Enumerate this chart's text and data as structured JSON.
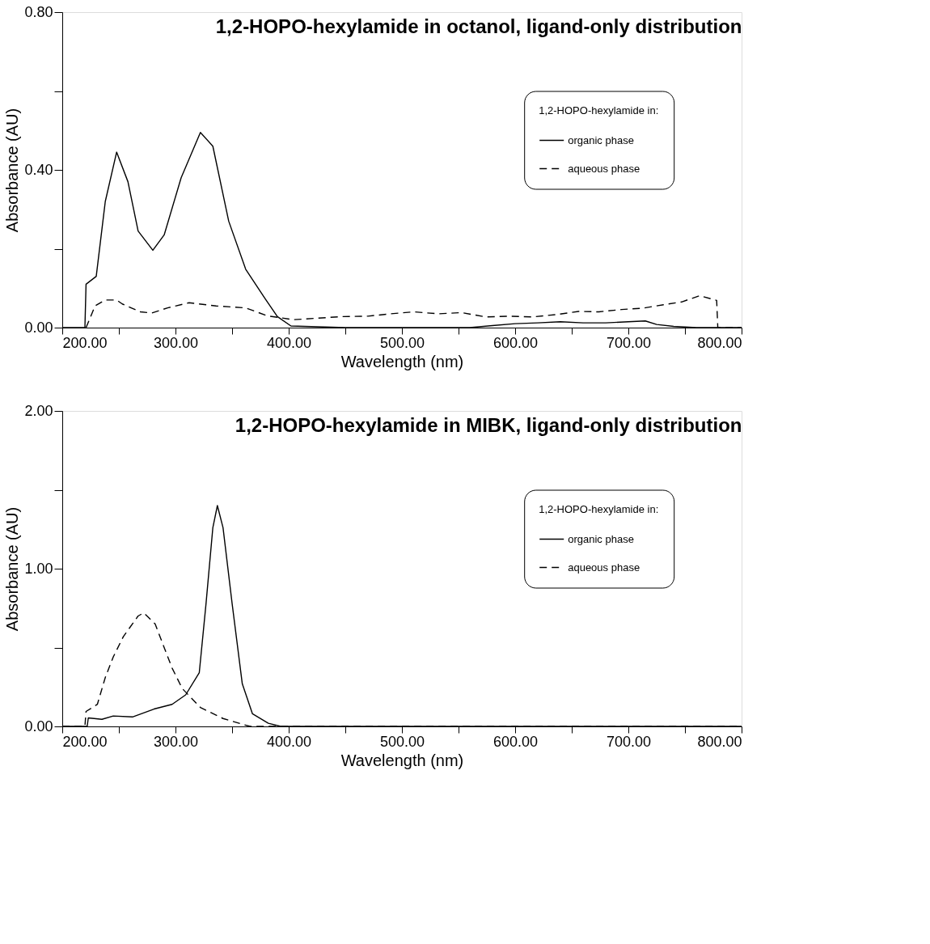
{
  "chart_data": [
    {
      "type": "line",
      "title": "1,2-HOPO-hexylamide in octanol, ligand-only distribution",
      "xlabel": "Wavelength (nm)",
      "ylabel": "Absorbance (AU)",
      "legend_title": "1,2-HOPO-hexylamide in:",
      "legend": "right",
      "grid": false,
      "marker": "none",
      "xlim": [
        200,
        800
      ],
      "ylim": [
        0,
        0.8
      ],
      "xticks": [
        {
          "value": 200,
          "label": "200.00"
        },
        {
          "value": 250,
          "label": null
        },
        {
          "value": 300,
          "label": "300.00"
        },
        {
          "value": 350,
          "label": null
        },
        {
          "value": 400,
          "label": "400.00"
        },
        {
          "value": 450,
          "label": null
        },
        {
          "value": 500,
          "label": "500.00"
        },
        {
          "value": 550,
          "label": null
        },
        {
          "value": 600,
          "label": "600.00"
        },
        {
          "value": 650,
          "label": null
        },
        {
          "value": 700,
          "label": "700.00"
        },
        {
          "value": 750,
          "label": null
        },
        {
          "value": 800,
          "label": "800.00"
        }
      ],
      "yticks": [
        {
          "value": 0,
          "label": "0.00"
        },
        {
          "value": 0.2,
          "label": null
        },
        {
          "value": 0.4,
          "label": "0.40"
        },
        {
          "value": 0.6,
          "label": null
        },
        {
          "value": 0.8,
          "label": "0.80"
        }
      ],
      "series": [
        {
          "name": "organic phase",
          "color": "#000000",
          "line_style": "solid",
          "x": [
            200,
            220,
            221,
            230,
            238,
            248,
            258,
            267,
            280,
            290,
            305,
            322,
            333,
            347,
            362,
            379,
            390,
            402,
            450,
            500,
            560,
            580,
            600,
            620,
            640,
            660,
            680,
            700,
            715,
            725,
            740,
            760,
            800
          ],
          "values": [
            0,
            0,
            0.11,
            0.13,
            0.32,
            0.445,
            0.37,
            0.245,
            0.196,
            0.235,
            0.38,
            0.495,
            0.46,
            0.27,
            0.148,
            0.074,
            0.028,
            0.004,
            0,
            0,
            0,
            0.005,
            0.01,
            0.012,
            0.015,
            0.012,
            0.012,
            0.015,
            0.017,
            0.008,
            0.003,
            0,
            0
          ]
        },
        {
          "name": "aqueous phase",
          "color": "#000000",
          "line_style": "dashed",
          "x": [
            221,
            229,
            238,
            248,
            253,
            269,
            279,
            293,
            312,
            336,
            362,
            381,
            404,
            426,
            447,
            470,
            490,
            511,
            532,
            553,
            574,
            594,
            615,
            636,
            656,
            674,
            694,
            712,
            731,
            747,
            763,
            778,
            779,
            800
          ],
          "values": [
            0.0,
            0.055,
            0.07,
            0.07,
            0.06,
            0.04,
            0.037,
            0.05,
            0.063,
            0.055,
            0.05,
            0.03,
            0.02,
            0.024,
            0.028,
            0.029,
            0.035,
            0.04,
            0.035,
            0.038,
            0.027,
            0.029,
            0.027,
            0.033,
            0.041,
            0.04,
            0.046,
            0.049,
            0.058,
            0.065,
            0.081,
            0.069,
            0,
            0
          ]
        }
      ]
    },
    {
      "type": "line",
      "title": "1,2-HOPO-hexylamide in MIBK, ligand-only distribution",
      "xlabel": "Wavelength (nm)",
      "ylabel": "Absorbance (AU)",
      "legend_title": "1,2-HOPO-hexylamide in:",
      "legend": "right",
      "grid": false,
      "marker": "none",
      "xlim": [
        200,
        800
      ],
      "ylim": [
        0,
        2
      ],
      "xticks": [
        {
          "value": 200,
          "label": "200.00"
        },
        {
          "value": 250,
          "label": null
        },
        {
          "value": 300,
          "label": "300.00"
        },
        {
          "value": 350,
          "label": null
        },
        {
          "value": 400,
          "label": "400.00"
        },
        {
          "value": 450,
          "label": null
        },
        {
          "value": 500,
          "label": "500.00"
        },
        {
          "value": 550,
          "label": null
        },
        {
          "value": 600,
          "label": "600.00"
        },
        {
          "value": 650,
          "label": null
        },
        {
          "value": 700,
          "label": "700.00"
        },
        {
          "value": 750,
          "label": null
        },
        {
          "value": 800,
          "label": "800.00"
        }
      ],
      "yticks": [
        {
          "value": 0,
          "label": "0.00"
        },
        {
          "value": 0.5,
          "label": null
        },
        {
          "value": 1,
          "label": "1.00"
        },
        {
          "value": 1.5,
          "label": null
        },
        {
          "value": 2,
          "label": "2.00"
        }
      ],
      "series": [
        {
          "name": "organic phase",
          "color": "#000000",
          "line_style": "solid",
          "x": [
            200,
            222,
            223,
            235,
            245,
            262,
            281,
            297,
            309,
            321,
            327,
            333,
            337,
            342,
            350,
            359,
            368,
            382,
            393,
            800
          ],
          "values": [
            0,
            0,
            0.054,
            0.045,
            0.066,
            0.06,
            0.11,
            0.14,
            0.2,
            0.34,
            0.78,
            1.26,
            1.4,
            1.26,
            0.78,
            0.27,
            0.08,
            0.02,
            0,
            0
          ]
        },
        {
          "name": "aqueous phase",
          "color": "#000000",
          "line_style": "dashed",
          "x": [
            200,
            220,
            221,
            231,
            238,
            245,
            254,
            267,
            272,
            282,
            290,
            297,
            306,
            322,
            342,
            361,
            366,
            800
          ],
          "values": [
            0,
            0,
            0.095,
            0.14,
            0.31,
            0.44,
            0.57,
            0.7,
            0.72,
            0.65,
            0.5,
            0.37,
            0.24,
            0.12,
            0.05,
            0.01,
            0,
            0
          ]
        }
      ]
    }
  ]
}
